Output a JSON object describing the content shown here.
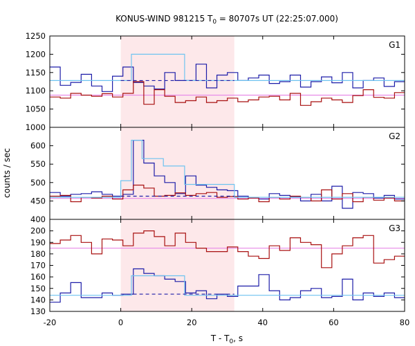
{
  "chart_data": {
    "type": "line",
    "title": "KONUS-WIND 981215 T0 = 80707s UT (22:25:07.000)",
    "title_parts": {
      "before": "KONUS-WIND 981215 T",
      "sub": "0",
      "after": " = 80707s UT (22:25:07.000)"
    },
    "xlabel_parts": {
      "before": "T - T",
      "sub": "0",
      "after": ", s"
    },
    "ylabel": "counts / sec",
    "xlim": [
      -20,
      80
    ],
    "x_ticks": [
      "-20",
      "0",
      "20",
      "40",
      "60",
      "80"
    ],
    "highlight_interval": [
      0,
      32
    ],
    "colors": {
      "highlight": "#fde8ea",
      "blue": "#1c1ca8",
      "red": "#a80f0f",
      "lightblue": "#6ec3f0",
      "pink": "#e88be8",
      "dashed": "#1c1ca8"
    },
    "panels": [
      {
        "label": "G1",
        "ylim": [
          1000,
          1250
        ],
        "y_ticks": [
          "1000",
          "1050",
          "1100",
          "1150",
          "1200",
          "1250"
        ],
        "bin_start": -20,
        "bin_width": 2.944,
        "series": [
          {
            "name": "",
            "color": "blue",
            "values": [
              1165,
              1115,
              1123,
              1145,
              1113,
              1098,
              1140,
              1165,
              1123,
              1113,
              1105,
              1150,
              1128,
              1128,
              1173,
              1108,
              1143,
              1150,
              1128,
              1135,
              1143,
              1120,
              1125,
              1143,
              1110,
              1125,
              1138,
              1122,
              1150,
              1108,
              1128,
              1135,
              1112,
              1125
            ]
          },
          {
            "name": "",
            "color": "red",
            "values": [
              1083,
              1080,
              1093,
              1088,
              1085,
              1092,
              1083,
              1093,
              1125,
              1063,
              1103,
              1085,
              1068,
              1073,
              1083,
              1068,
              1073,
              1080,
              1070,
              1075,
              1083,
              1085,
              1075,
              1093,
              1060,
              1070,
              1080,
              1075,
              1068,
              1087,
              1103,
              1082,
              1080,
              1095
            ]
          }
        ],
        "bayesian": {
          "color": "lightblue",
          "segments": [
            [
              -20,
              1128
            ],
            [
              0,
              1128
            ],
            [
              3,
              1200
            ],
            [
              18,
              1128
            ],
            [
              80,
              1128
            ]
          ]
        },
        "background_line": {
          "color": "pink",
          "value": 1088
        },
        "dashed_level": {
          "from": 0,
          "to": 32,
          "value": 1128
        }
      },
      {
        "label": "G2",
        "ylim": [
          400,
          650
        ],
        "y_ticks": [
          "400",
          "450",
          "500",
          "550",
          "600"
        ],
        "bin_start": -20,
        "bin_width": 2.944,
        "series": [
          {
            "name": "",
            "color": "blue",
            "values": [
              473,
              463,
              468,
              470,
              475,
              468,
              463,
              468,
              615,
              553,
              518,
              500,
              470,
              518,
              493,
              487,
              480,
              478,
              463,
              460,
              455,
              470,
              465,
              462,
              450,
              468,
              450,
              490,
              430,
              473,
              470,
              458,
              465,
              455
            ]
          },
          {
            "name": "",
            "color": "red",
            "values": [
              463,
              465,
              448,
              460,
              458,
              463,
              455,
              480,
              493,
              485,
              463,
              465,
              472,
              465,
              470,
              473,
              460,
              462,
              455,
              458,
              448,
              460,
              455,
              463,
              460,
              450,
              480,
              455,
              470,
              448,
              460,
              452,
              458,
              450
            ]
          }
        ],
        "bayesian": {
          "color": "lightblue",
          "segments": [
            [
              -20,
              460
            ],
            [
              0,
              460
            ],
            [
              0,
              505
            ],
            [
              3,
              615
            ],
            [
              6,
              565
            ],
            [
              12,
              545
            ],
            [
              18,
              495
            ],
            [
              32,
              460
            ],
            [
              80,
              460
            ]
          ]
        },
        "background_line": {
          "color": "pink",
          "value": 457
        },
        "dashed_level": {
          "from": 0,
          "to": 32,
          "value": 463
        }
      },
      {
        "label": "G3",
        "ylim": [
          130,
          210
        ],
        "y_ticks": [
          "130",
          "140",
          "150",
          "160",
          "170",
          "180",
          "190",
          "200"
        ],
        "bin_start": -20,
        "bin_width": 2.944,
        "series": [
          {
            "name": "",
            "color": "blue",
            "values": [
              138,
              146,
              155,
              142,
              142,
              146,
              144,
              145,
              167,
              163,
              161,
              158,
              156,
              146,
              148,
              141,
              145,
              143,
              152,
              152,
              162,
              148,
              140,
              142,
              148,
              150,
              142,
              143,
              158,
              140,
              146,
              143,
              146,
              142
            ]
          },
          {
            "name": "",
            "color": "red",
            "values": [
              189,
              192,
              196,
              190,
              180,
              193,
              192,
              187,
              198,
              200,
              195,
              187,
              198,
              190,
              185,
              182,
              182,
              186,
              182,
              178,
              176,
              187,
              183,
              194,
              190,
              188,
              168,
              180,
              187,
              194,
              196,
              172,
              175,
              178
            ]
          }
        ],
        "bayesian": {
          "color": "lightblue",
          "segments": [
            [
              -20,
              144
            ],
            [
              0,
              144
            ],
            [
              3,
              161
            ],
            [
              18,
              144
            ],
            [
              80,
              144
            ]
          ]
        },
        "background_line": {
          "color": "pink",
          "value": 185
        },
        "dashed_level": {
          "from": 0,
          "to": 32,
          "value": 145
        }
      }
    ]
  }
}
